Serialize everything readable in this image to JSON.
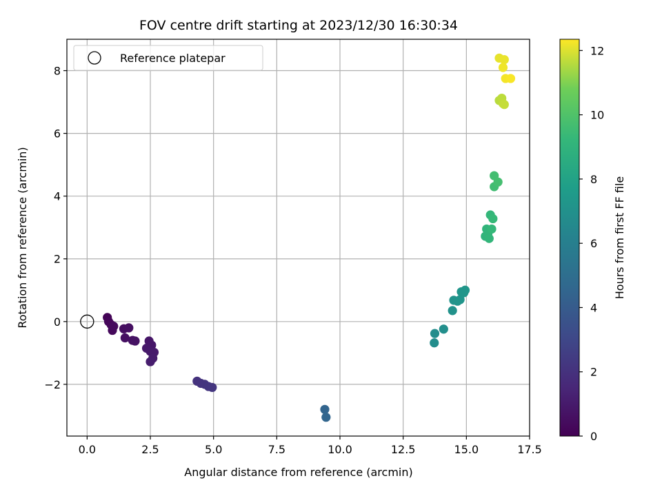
{
  "chart_data": {
    "type": "scatter",
    "title": "FOV centre drift starting at 2023/12/30 16:30:34",
    "xlabel": "Angular distance from reference (arcmin)",
    "ylabel": "Rotation from reference (arcmin)",
    "xlim": [
      -0.8,
      17.5
    ],
    "ylim": [
      -3.65,
      9.0
    ],
    "xticks": [
      0.0,
      2.5,
      5.0,
      7.5,
      10.0,
      12.5,
      15.0,
      17.5
    ],
    "xtick_labels": [
      "0.0",
      "2.5",
      "5.0",
      "7.5",
      "10.0",
      "12.5",
      "15.0",
      "17.5"
    ],
    "yticks": [
      -2,
      0,
      2,
      4,
      6,
      8
    ],
    "ytick_labels": [
      "−2",
      "0",
      "2",
      "4",
      "6",
      "8"
    ],
    "grid": true,
    "legend": {
      "placement": "upper-left",
      "entries": [
        "Reference platepar"
      ]
    },
    "reference": {
      "x": 0.0,
      "y": 0.0,
      "name": "Reference platepar"
    },
    "colorbar": {
      "label": "Hours from first FF file",
      "range": [
        0,
        12.35
      ],
      "ticks": [
        0,
        2,
        4,
        6,
        8,
        10,
        12
      ],
      "tick_labels": [
        "0",
        "2",
        "4",
        "6",
        "8",
        "10",
        "12"
      ],
      "colormap": "viridis"
    },
    "points": [
      {
        "x": 0.8,
        "y": 0.13,
        "h": 0.1
      },
      {
        "x": 0.85,
        "y": 0.0,
        "h": 0.2
      },
      {
        "x": 0.95,
        "y": -0.1,
        "h": 0.25
      },
      {
        "x": 1.0,
        "y": -0.28,
        "h": 0.3
      },
      {
        "x": 1.05,
        "y": -0.15,
        "h": 0.35
      },
      {
        "x": 1.45,
        "y": -0.23,
        "h": 0.5
      },
      {
        "x": 1.65,
        "y": -0.2,
        "h": 0.55
      },
      {
        "x": 1.5,
        "y": -0.52,
        "h": 0.6
      },
      {
        "x": 1.8,
        "y": -0.6,
        "h": 0.65
      },
      {
        "x": 1.9,
        "y": -0.62,
        "h": 0.7
      },
      {
        "x": 2.45,
        "y": -0.62,
        "h": 0.8
      },
      {
        "x": 2.55,
        "y": -0.75,
        "h": 0.85
      },
      {
        "x": 2.35,
        "y": -0.85,
        "h": 0.9
      },
      {
        "x": 2.5,
        "y": -0.95,
        "h": 0.95
      },
      {
        "x": 2.65,
        "y": -0.98,
        "h": 1.0
      },
      {
        "x": 2.6,
        "y": -1.17,
        "h": 1.05
      },
      {
        "x": 2.5,
        "y": -1.28,
        "h": 1.1
      },
      {
        "x": 4.35,
        "y": -1.9,
        "h": 2.0
      },
      {
        "x": 4.5,
        "y": -1.97,
        "h": 2.05
      },
      {
        "x": 4.65,
        "y": -2.0,
        "h": 2.1
      },
      {
        "x": 4.8,
        "y": -2.07,
        "h": 2.15
      },
      {
        "x": 4.95,
        "y": -2.1,
        "h": 2.2
      },
      {
        "x": 9.4,
        "y": -2.8,
        "h": 4.5
      },
      {
        "x": 9.45,
        "y": -3.05,
        "h": 4.55
      },
      {
        "x": 13.75,
        "y": -0.38,
        "h": 6.8
      },
      {
        "x": 13.73,
        "y": -0.68,
        "h": 6.8
      },
      {
        "x": 14.1,
        "y": -0.24,
        "h": 6.9
      },
      {
        "x": 14.45,
        "y": 0.35,
        "h": 7.05
      },
      {
        "x": 14.5,
        "y": 0.68,
        "h": 7.1
      },
      {
        "x": 14.65,
        "y": 0.65,
        "h": 7.15
      },
      {
        "x": 14.75,
        "y": 0.7,
        "h": 7.2
      },
      {
        "x": 14.8,
        "y": 0.95,
        "h": 7.25
      },
      {
        "x": 14.95,
        "y": 1.0,
        "h": 7.3
      },
      {
        "x": 14.9,
        "y": 0.92,
        "h": 7.3
      },
      {
        "x": 15.75,
        "y": 2.72,
        "h": 9.0
      },
      {
        "x": 15.8,
        "y": 2.95,
        "h": 9.05
      },
      {
        "x": 15.85,
        "y": 2.8,
        "h": 9.1
      },
      {
        "x": 15.9,
        "y": 2.65,
        "h": 9.15
      },
      {
        "x": 15.95,
        "y": 3.4,
        "h": 9.2
      },
      {
        "x": 16.0,
        "y": 2.95,
        "h": 9.25
      },
      {
        "x": 16.05,
        "y": 3.28,
        "h": 9.3
      },
      {
        "x": 16.1,
        "y": 4.3,
        "h": 9.6
      },
      {
        "x": 16.1,
        "y": 4.65,
        "h": 9.65
      },
      {
        "x": 16.25,
        "y": 4.45,
        "h": 9.7
      },
      {
        "x": 16.3,
        "y": 7.05,
        "h": 11.6
      },
      {
        "x": 16.4,
        "y": 7.12,
        "h": 11.65
      },
      {
        "x": 16.45,
        "y": 6.95,
        "h": 11.7
      },
      {
        "x": 16.5,
        "y": 6.92,
        "h": 11.75
      },
      {
        "x": 16.3,
        "y": 8.4,
        "h": 12.1
      },
      {
        "x": 16.5,
        "y": 8.35,
        "h": 12.15
      },
      {
        "x": 16.45,
        "y": 8.1,
        "h": 12.2
      },
      {
        "x": 16.55,
        "y": 7.75,
        "h": 12.25
      },
      {
        "x": 16.75,
        "y": 7.75,
        "h": 12.3
      }
    ]
  }
}
